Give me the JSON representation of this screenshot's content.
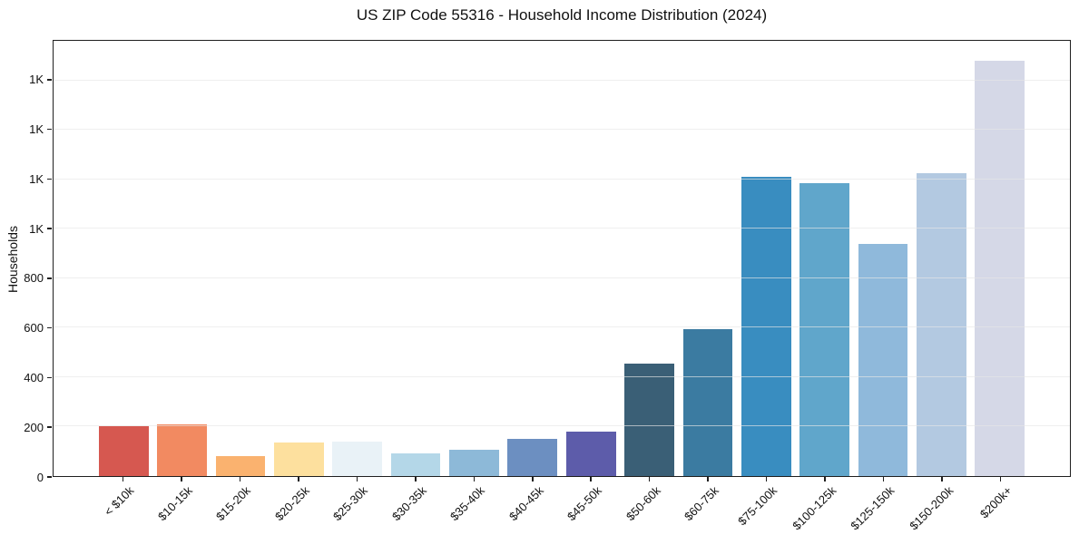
{
  "chart_data": {
    "type": "bar",
    "title": "US ZIP Code 55316 - Household Income Distribution (2024)",
    "xlabel": "",
    "ylabel": "Households",
    "categories": [
      "< $10k",
      "$10-15k",
      "$15-20k",
      "$20-25k",
      "$25-30k",
      "$30-35k",
      "$35-40k",
      "$40-45k",
      "$45-50k",
      "$50-60k",
      "$60-75k",
      "$75-100k",
      "$100-125k",
      "$125-150k",
      "$150-200k",
      "$200k+"
    ],
    "values": [
      200,
      210,
      80,
      135,
      140,
      90,
      105,
      150,
      180,
      455,
      595,
      1210,
      1185,
      940,
      1225,
      1680
    ],
    "bar_colors": [
      "#d65850",
      "#f28a61",
      "#fab26f",
      "#fde09e",
      "#e9f2f7",
      "#b4d7e8",
      "#8db9d8",
      "#6c8fc1",
      "#5d5caa",
      "#3a5f76",
      "#3b7ba1",
      "#398dc0",
      "#60a6cb",
      "#8fb9db",
      "#b3c9e1",
      "#d5d8e7"
    ],
    "ylim": [
      0,
      1760
    ],
    "yticks": [
      {
        "value": 0,
        "label": "0"
      },
      {
        "value": 200,
        "label": "200"
      },
      {
        "value": 400,
        "label": "400"
      },
      {
        "value": 600,
        "label": "600"
      },
      {
        "value": 800,
        "label": "800"
      },
      {
        "value": 1000,
        "label": "1K"
      },
      {
        "value": 1200,
        "label": "1K"
      },
      {
        "value": 1400,
        "label": "1K"
      },
      {
        "value": 1600,
        "label": "1K"
      }
    ],
    "grid": {
      "horizontal": true,
      "vertical": false,
      "drawn_above_bars": true
    },
    "legend": "none",
    "x_tick_rotation_deg": 45
  },
  "colors": {
    "background": "#ffffff",
    "spine": "#1f1f1f",
    "grid": "#e7e7e7",
    "text": "#111111"
  }
}
